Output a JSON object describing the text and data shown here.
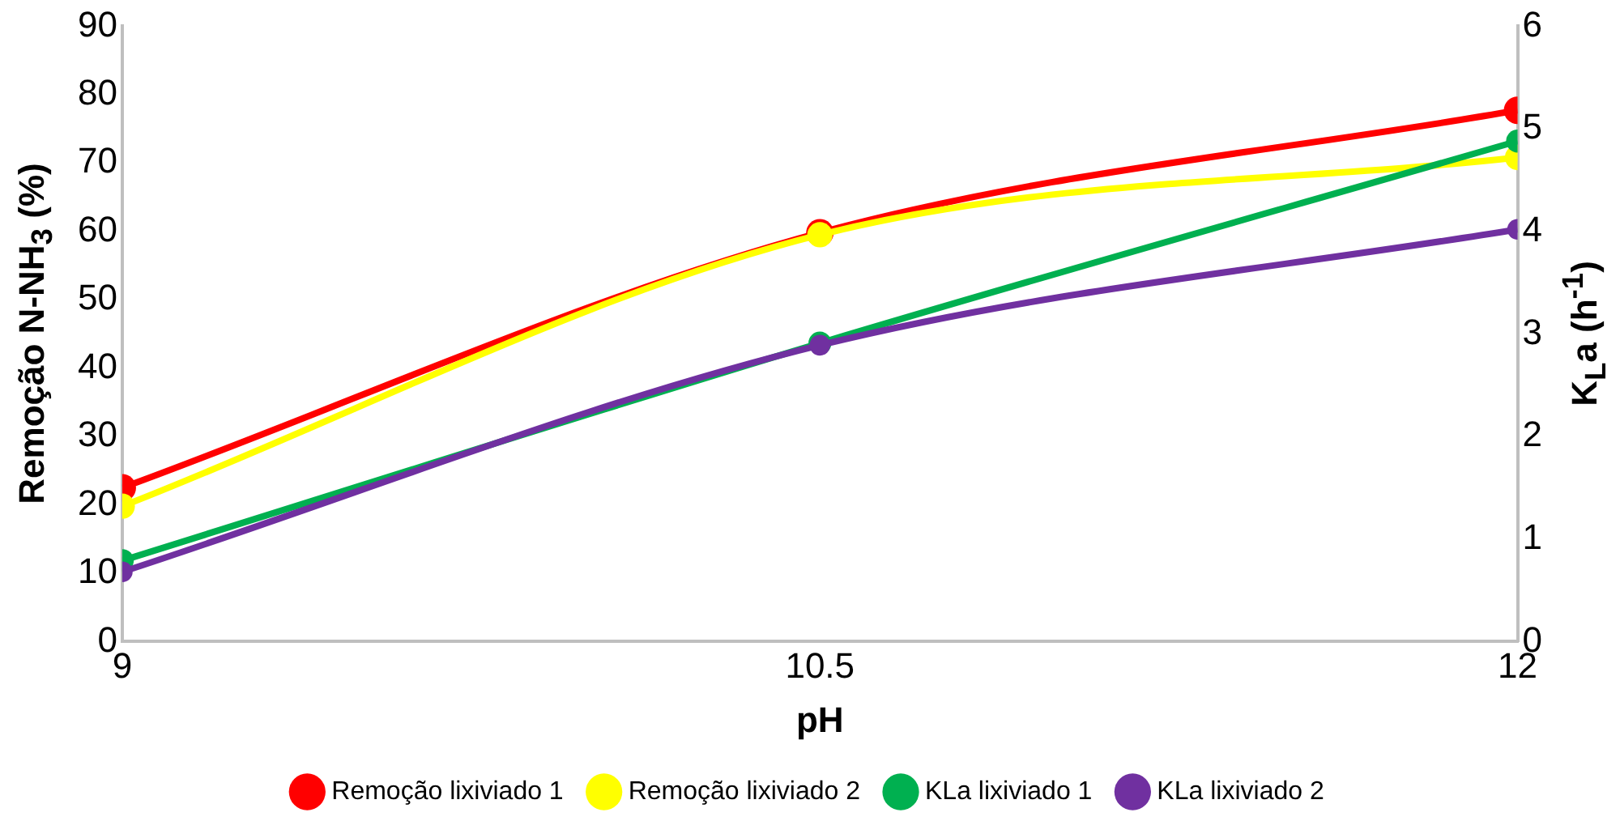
{
  "chart_data": {
    "type": "line",
    "xlabel": "pH",
    "ylabel": "Remoção N-NH$_{3}$ (%)",
    "y2label": "K$_{L}$a (h$^{-1}$)",
    "x": [
      9,
      10.5,
      12
    ],
    "series": [
      {
        "name": "Remoção lixiviado 1",
        "color": "#ff0000",
        "values": [
          22.5,
          59.8,
          77.7
        ]
      },
      {
        "name": "Remoção lixiviado 2",
        "color": "#ffff00",
        "values": [
          19.8,
          59.5,
          70.8
        ]
      },
      {
        "name": "KLa lixiviado 1",
        "color": "#00b050",
        "values": [
          0.79,
          2.91,
          4.88
        ],
        "axis": "y2"
      },
      {
        "name": "KLa lixiviado 2",
        "color": "#7030a0",
        "values": [
          0.68,
          2.89,
          4.02
        ],
        "axis": "y2"
      }
    ],
    "xlim": [
      9,
      12
    ],
    "xticks": [
      9,
      10.5,
      12
    ],
    "ylim": [
      0,
      90
    ],
    "yticks": [
      0,
      10,
      20,
      30,
      40,
      50,
      60,
      70,
      80,
      90
    ],
    "y2lim": [
      0,
      6
    ],
    "y2ticks": [
      0,
      1,
      2,
      3,
      4,
      5,
      6
    ],
    "grid": false,
    "legend": "bottom",
    "marker": "circle",
    "line_style": "solid"
  }
}
